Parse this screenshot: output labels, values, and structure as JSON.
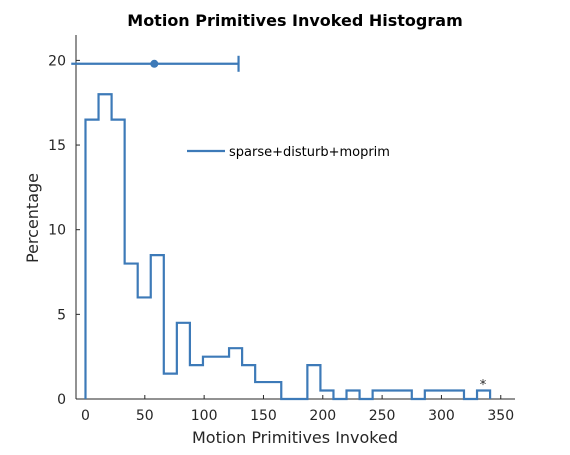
{
  "chart_data": {
    "type": "histogram",
    "title": "Motion Primitives Invoked Histogram",
    "xlabel": "Motion Primitives Invoked",
    "ylabel": "Percentage",
    "xlim": [
      -8,
      362
    ],
    "ylim": [
      0,
      21.5
    ],
    "xticks": [
      0,
      50,
      100,
      150,
      200,
      250,
      300,
      350
    ],
    "yticks": [
      0,
      5,
      10,
      15,
      20
    ],
    "bin_width": 11,
    "series": [
      {
        "name": "sparse+disturb+moprim",
        "color": "#3d7ab8",
        "bins": [
          {
            "start": 0,
            "value": 16.5
          },
          {
            "start": 11,
            "value": 18.0
          },
          {
            "start": 22,
            "value": 16.5
          },
          {
            "start": 33,
            "value": 8.0
          },
          {
            "start": 44,
            "value": 6.0
          },
          {
            "start": 55,
            "value": 8.5
          },
          {
            "start": 66,
            "value": 1.5
          },
          {
            "start": 77,
            "value": 4.5
          },
          {
            "start": 88,
            "value": 2.0
          },
          {
            "start": 99,
            "value": 2.5
          },
          {
            "start": 110,
            "value": 2.5
          },
          {
            "start": 121,
            "value": 3.0
          },
          {
            "start": 132,
            "value": 2.0
          },
          {
            "start": 143,
            "value": 1.0
          },
          {
            "start": 154,
            "value": 1.0
          },
          {
            "start": 165,
            "value": 0.0
          },
          {
            "start": 176,
            "value": 0.0
          },
          {
            "start": 187,
            "value": 2.0
          },
          {
            "start": 198,
            "value": 0.5
          },
          {
            "start": 209,
            "value": 0.0
          },
          {
            "start": 220,
            "value": 0.5
          },
          {
            "start": 231,
            "value": 0.0
          },
          {
            "start": 242,
            "value": 0.5
          },
          {
            "start": 253,
            "value": 0.5
          },
          {
            "start": 264,
            "value": 0.5
          },
          {
            "start": 275,
            "value": 0.0
          },
          {
            "start": 286,
            "value": 0.5
          },
          {
            "start": 297,
            "value": 0.5
          },
          {
            "start": 308,
            "value": 0.5
          },
          {
            "start": 319,
            "value": 0.0
          },
          {
            "start": 330,
            "value": 0.5
          }
        ]
      }
    ],
    "error_bar": {
      "center": 58,
      "low": -12,
      "high": 129,
      "y": 19.8
    },
    "annotation": {
      "text": "*",
      "x": 335,
      "y": 0.6
    },
    "legend": {
      "position": "inside-center",
      "label": "sparse+disturb+moprim"
    },
    "grid": false
  }
}
